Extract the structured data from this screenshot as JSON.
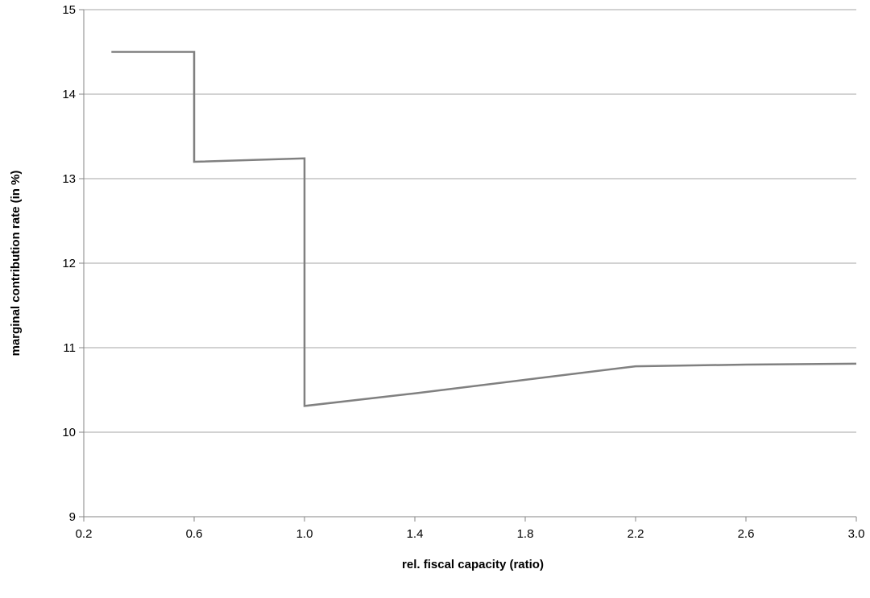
{
  "chart_data": {
    "type": "line",
    "title": "",
    "xlabel": "rel. fiscal capacity (ratio)",
    "ylabel": "marginal contribution rate (in %)",
    "xlim": [
      0.2,
      3.0
    ],
    "ylim": [
      9,
      15
    ],
    "x_ticks": [
      "0.2",
      "0.6",
      "1.0",
      "1.4",
      "1.8",
      "2.2",
      "2.6",
      "3.0"
    ],
    "y_ticks": [
      "9",
      "10",
      "11",
      "12",
      "13",
      "14",
      "15"
    ],
    "grid": "horizontal",
    "legend": "none",
    "series": [
      {
        "color": "#808080",
        "points": [
          [
            0.3,
            14.5
          ],
          [
            0.6,
            14.5
          ],
          [
            0.6,
            13.2
          ],
          [
            1.0,
            13.24
          ],
          [
            1.0,
            10.31
          ],
          [
            1.4,
            10.46
          ],
          [
            1.8,
            10.62
          ],
          [
            2.2,
            10.78
          ],
          [
            2.6,
            10.8
          ],
          [
            3.0,
            10.81
          ]
        ]
      }
    ],
    "colors": {
      "gridline": "#a6a6a6",
      "axis": "#868686"
    }
  }
}
